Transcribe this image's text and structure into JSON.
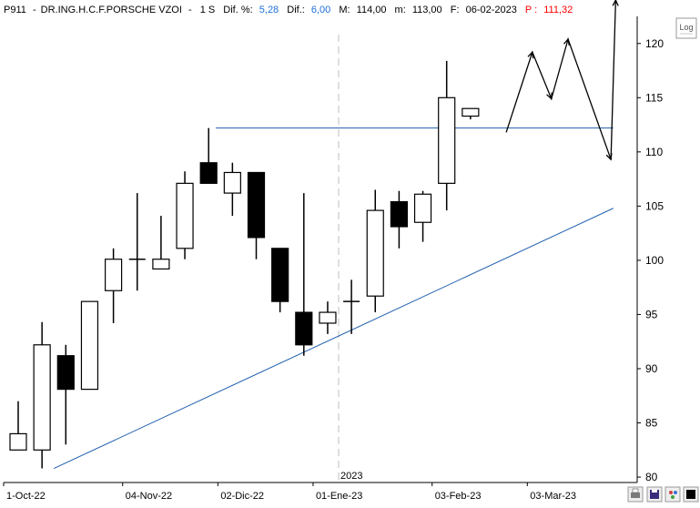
{
  "header": {
    "ticker": "P911",
    "name": "DR.ING.H.C.F.PORSCHE VZOI",
    "period": "1 S",
    "dif_pct_label": "Dif. %:",
    "dif_pct_value": "5,28",
    "dif_label": "Dif.:",
    "dif_value": "6,00",
    "max_label": "M:",
    "max_value": "114,00",
    "min_label": "m:",
    "min_value": "113,00",
    "date_label": "F:",
    "date_value": "06-02-2023",
    "price_label": "P :",
    "price_value": "111,32"
  },
  "log_button": {
    "label": "Log"
  },
  "colors": {
    "positive": "#1e6fd9",
    "negative": "#ff0000",
    "trendline": "#1f5fae",
    "grid": "#c0c0c0",
    "candle_up": "#ffffff",
    "candle_down": "#000000"
  },
  "chart_data": {
    "type": "candlestick",
    "title": "",
    "ylim": [
      79.5,
      122.5
    ],
    "y_ticks": [
      "120",
      "115",
      "110",
      "105",
      "100",
      "95",
      "90",
      "85",
      "80"
    ],
    "y_tick_values": [
      120,
      115,
      110,
      105,
      100,
      95,
      90,
      85,
      80
    ],
    "x_tick_labels": [
      "1-Oct-22",
      "04-Nov-22",
      "02-Dic-22",
      "01-Ene-23",
      "03-Feb-23",
      "03-Mar-23"
    ],
    "x_tick_week_index": [
      0,
      5,
      9,
      13,
      18,
      22
    ],
    "year_marker": {
      "label": "2023",
      "week_index": 13.5
    },
    "weeks": [
      {
        "open": 82.5,
        "high": 87.0,
        "low": 82.5,
        "close": 84.0
      },
      {
        "open": 82.5,
        "high": 94.3,
        "low": 80.8,
        "close": 92.2
      },
      {
        "open": 91.2,
        "high": 92.2,
        "low": 83.0,
        "close": 88.1
      },
      {
        "open": 88.1,
        "high": 96.2,
        "low": 88.1,
        "close": 96.2
      },
      {
        "open": 97.2,
        "high": 101.1,
        "low": 94.2,
        "close": 100.1
      },
      {
        "open": 100.1,
        "high": 106.2,
        "low": 97.2,
        "close": 100.1
      },
      {
        "open": 99.2,
        "high": 104.1,
        "low": 99.2,
        "close": 100.1
      },
      {
        "open": 101.1,
        "high": 108.2,
        "low": 100.1,
        "close": 107.1
      },
      {
        "open": 109.0,
        "high": 112.2,
        "low": 107.1,
        "close": 107.1
      },
      {
        "open": 106.2,
        "high": 109.0,
        "low": 104.1,
        "close": 108.1
      },
      {
        "open": 108.1,
        "high": 108.1,
        "low": 100.1,
        "close": 102.1
      },
      {
        "open": 101.1,
        "high": 101.1,
        "low": 95.2,
        "close": 96.2
      },
      {
        "open": 95.2,
        "high": 106.2,
        "low": 91.2,
        "close": 92.2
      },
      {
        "open": 94.2,
        "high": 96.2,
        "low": 93.2,
        "close": 95.2
      },
      {
        "open": 96.2,
        "high": 98.2,
        "low": 93.2,
        "close": 96.2
      },
      {
        "open": 96.7,
        "high": 106.5,
        "low": 95.2,
        "close": 104.6
      },
      {
        "open": 105.4,
        "high": 106.4,
        "low": 101.1,
        "close": 103.1
      },
      {
        "open": 103.5,
        "high": 106.4,
        "low": 101.7,
        "close": 106.1
      },
      {
        "open": 107.1,
        "high": 118.4,
        "low": 104.6,
        "close": 115.0
      },
      {
        "open": 113.3,
        "high": 114.0,
        "low": 113.0,
        "close": 114.0
      }
    ],
    "resistance_line": {
      "value": 112.2,
      "from_week": 8.3,
      "to_week": 25.0
    },
    "trend_line": {
      "points": [
        {
          "week": 1.5,
          "value": 80.8
        },
        {
          "week": 25.0,
          "value": 104.8
        }
      ]
    },
    "projection": {
      "points": [
        {
          "week": 20.5,
          "value": 111.8
        },
        {
          "week": 21.6,
          "value": 119.2
        },
        {
          "week": 22.4,
          "value": 114.9
        },
        {
          "week": 23.1,
          "value": 120.4
        },
        {
          "week": 24.9,
          "value": 109.3
        },
        {
          "week": 25.1,
          "value": 124.0
        }
      ]
    }
  }
}
